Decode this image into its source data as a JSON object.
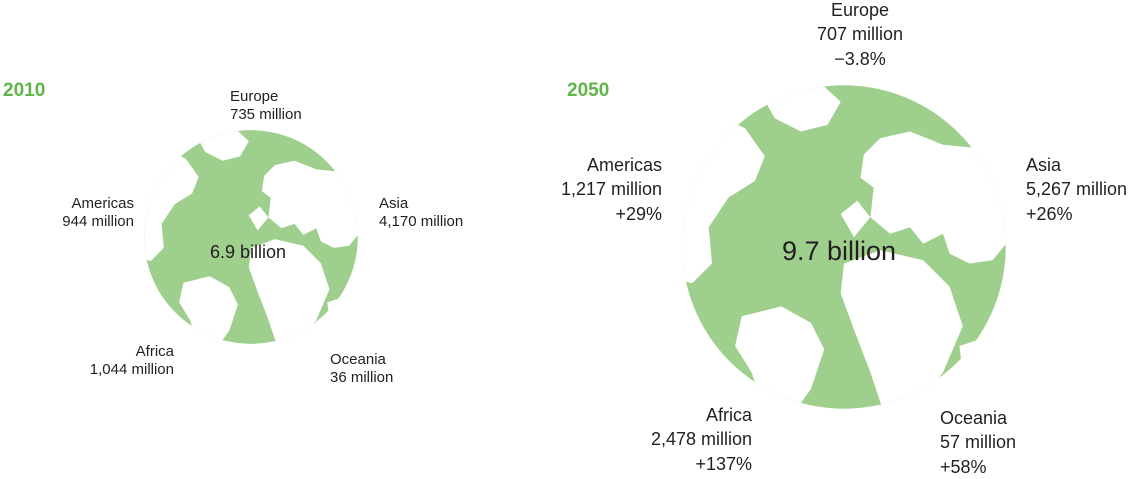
{
  "colors": {
    "accent": "#5fb548",
    "globe": "#9fcf8c",
    "land": "#ffffff"
  },
  "panel_2010": {
    "year": "2010",
    "total": "6.9 billion",
    "europe": {
      "name": "Europe",
      "value": "735 million"
    },
    "americas": {
      "name": "Americas",
      "value": "944 million"
    },
    "asia": {
      "name": "Asia",
      "value": "4,170 million"
    },
    "africa": {
      "name": "Africa",
      "value": "1,044 million"
    },
    "oceania": {
      "name": "Oceania",
      "value": "36 million"
    }
  },
  "panel_2050": {
    "year": "2050",
    "total": "9.7 billion",
    "europe": {
      "name": "Europe",
      "value": "707 million",
      "change": "−3.8%"
    },
    "americas": {
      "name": "Americas",
      "value": "1,217 million",
      "change": "+29%"
    },
    "asia": {
      "name": "Asia",
      "value": "5,267 million",
      "change": "+26%"
    },
    "africa": {
      "name": "Africa",
      "value": "2,478 million",
      "change": "+137%"
    },
    "oceania": {
      "name": "Oceania",
      "value": "57 million",
      "change": "+58%"
    }
  }
}
